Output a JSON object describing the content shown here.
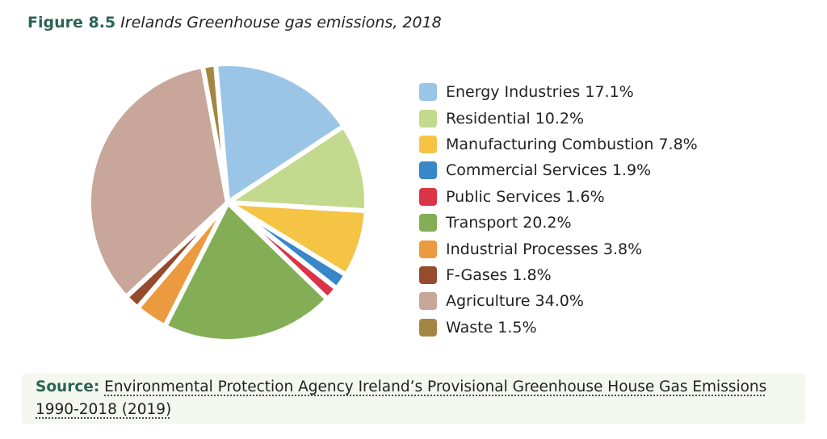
{
  "title": {
    "figure_label": "Figure 8.5",
    "caption": "Irelands Greenhouse gas emissions, 2018"
  },
  "chart_data": {
    "type": "pie",
    "title": "Irelands Greenhouse gas emissions, 2018",
    "unit": "%",
    "legend_position": "right",
    "categories": [
      "Energy Industries",
      "Residential",
      "Manufacturing Combustion",
      "Commercial Services",
      "Public Services",
      "Transport",
      "Industrial Processes",
      "F-Gases",
      "Agriculture",
      "Waste"
    ],
    "values": [
      17.1,
      10.2,
      7.8,
      1.9,
      1.6,
      20.2,
      3.8,
      1.8,
      34.0,
      1.5
    ],
    "legend_labels": [
      "Energy Industries 17.1%",
      "Residential 10.2%",
      "Manufacturing Combustion 7.8%",
      "Commercial Services 1.9%",
      "Public Services 1.6%",
      "Transport 20.2%",
      "Industrial Processes 3.8%",
      "F-Gases 1.8%",
      "Agriculture 34.0%",
      "Waste 1.5%"
    ],
    "colors": [
      "#9bc5e7",
      "#c2d98e",
      "#f5c445",
      "#3787c9",
      "#db3446",
      "#83ae55",
      "#ec9a3f",
      "#954b2c",
      "#c8a69a",
      "#a48542"
    ]
  },
  "source": {
    "label": "Source:",
    "text": "Environmental Protection Agency Ireland’s Provisional Greenhouse House Gas Emissions 1990-2018 (2019)"
  }
}
